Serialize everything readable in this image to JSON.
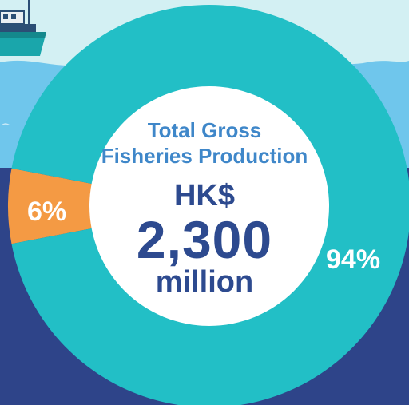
{
  "colors": {
    "sky": "#d3f0f3",
    "sea_surface": "#6fc6ec",
    "deep_sea": "#2e4489",
    "ring_large": "#22bfc6",
    "ring_small": "#f49a44",
    "center_fill": "#ffffff",
    "amount_text": "#2d4a8f",
    "title_text": "#3f87c9"
  },
  "icons": [
    "boat-icon",
    "bird-icon"
  ],
  "center": {
    "title_line1": "Total Gross",
    "title_line2": "Fisheries Production",
    "currency": "HK$",
    "amount": "2,300",
    "unit": "million"
  },
  "chart_data": {
    "type": "pie",
    "title": "",
    "slices": [
      {
        "label": "94%",
        "value": 94,
        "color": "#22bfc6"
      },
      {
        "label": "6%",
        "value": 6,
        "color": "#f49a44"
      }
    ]
  }
}
